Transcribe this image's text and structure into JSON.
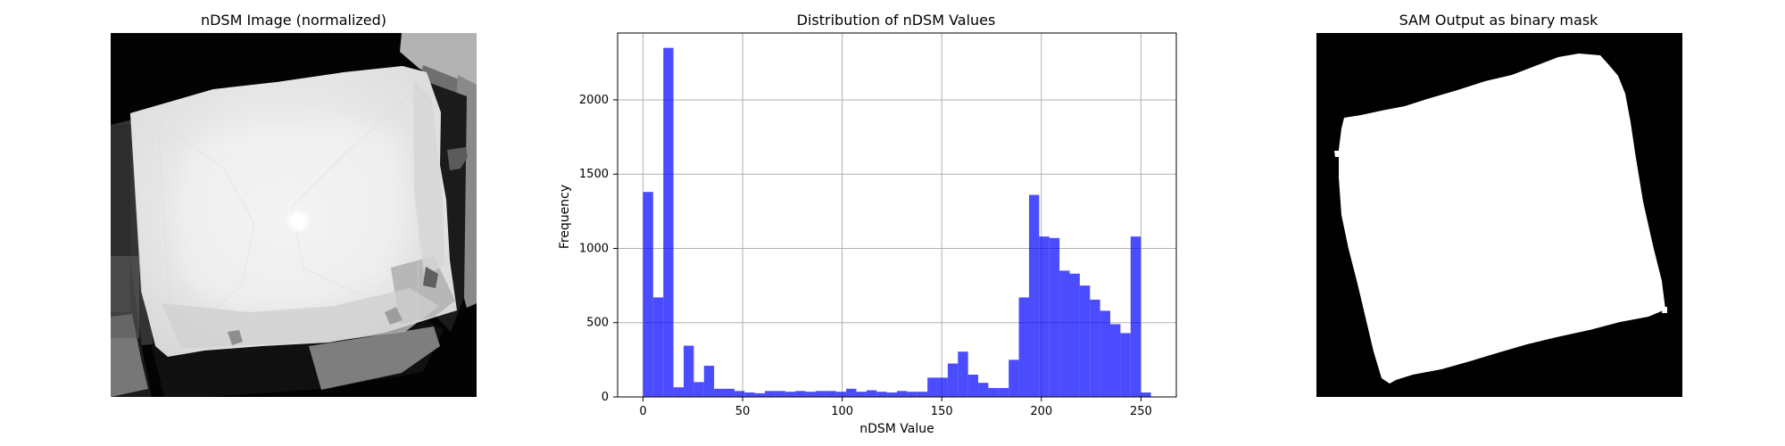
{
  "panels": {
    "left": {
      "title": "nDSM Image (normalized)"
    },
    "middle": {
      "title": "Distribution of nDSM Values"
    },
    "right": {
      "title": "SAM Output as binary mask"
    }
  },
  "chart_data": [
    {
      "type": "image",
      "title": "nDSM Image (normalized)",
      "colormap": "gray",
      "axes_visible": false
    },
    {
      "type": "bar",
      "title": "Distribution of nDSM Values",
      "xlabel": "nDSM Value",
      "ylabel": "Frequency",
      "xlim": [
        -12.75,
        267.75
      ],
      "ylim": [
        0,
        2450
      ],
      "grid": true,
      "color": "#0000ff",
      "alpha": 0.7,
      "x_ticks": [
        0,
        50,
        100,
        150,
        200,
        250
      ],
      "y_ticks": [
        0,
        500,
        1000,
        1500,
        2000
      ],
      "bin_width": 5.1,
      "bin_edges_start": 0,
      "values": [
        1380,
        670,
        2350,
        65,
        345,
        100,
        210,
        55,
        55,
        40,
        30,
        25,
        40,
        40,
        35,
        40,
        35,
        40,
        40,
        35,
        55,
        35,
        45,
        35,
        30,
        40,
        35,
        35,
        130,
        130,
        225,
        305,
        150,
        95,
        60,
        60,
        250,
        670,
        1360,
        1080,
        1070,
        850,
        830,
        750,
        655,
        580,
        490,
        430,
        1080,
        30
      ]
    },
    {
      "type": "image",
      "title": "SAM Output as binary mask",
      "colormap": "binary",
      "axes_visible": false
    }
  ]
}
